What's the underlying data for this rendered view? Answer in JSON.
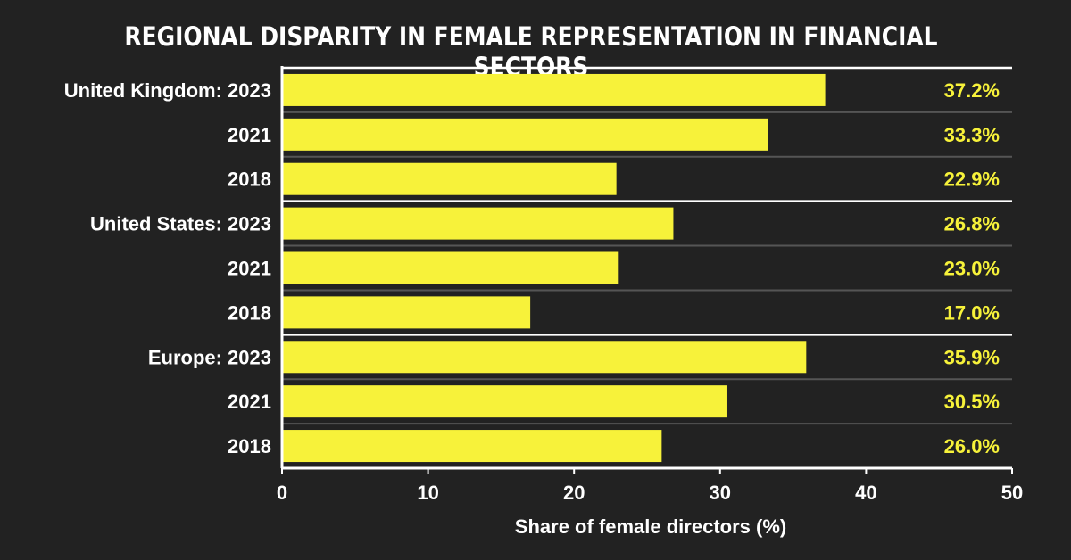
{
  "chart_data": {
    "type": "bar",
    "orientation": "horizontal",
    "title": "REGIONAL DISPARITY IN FEMALE REPRESENTATION IN FINANCIAL SECTORS",
    "xlabel": "Share of female directors (%)",
    "ylabel": "",
    "xlim": [
      0,
      50
    ],
    "xticks": [
      "0",
      "10",
      "20",
      "30",
      "40",
      "50"
    ],
    "categories": [
      "United Kingdom: 2023",
      "2021",
      "2018",
      "United States: 2023",
      "2021",
      "2018",
      "Europe: 2023",
      "2021",
      "2018"
    ],
    "values": [
      37.2,
      33.3,
      22.9,
      26.8,
      23.0,
      17.0,
      35.9,
      30.5,
      26.0
    ],
    "value_labels": [
      "37.2%",
      "33.3%",
      "22.9%",
      "26.8%",
      "23.0%",
      "17.0%",
      "35.9%",
      "30.5%",
      "26.0%"
    ],
    "group_separators_after": [
      2,
      5
    ],
    "grid": false,
    "legend": "none",
    "colors": {
      "background": "#222222",
      "bar": "#f7f23a",
      "value_text": "#f7f23a",
      "text": "#ffffff",
      "separator": "#ffffff",
      "row_divider": "#555555"
    }
  }
}
